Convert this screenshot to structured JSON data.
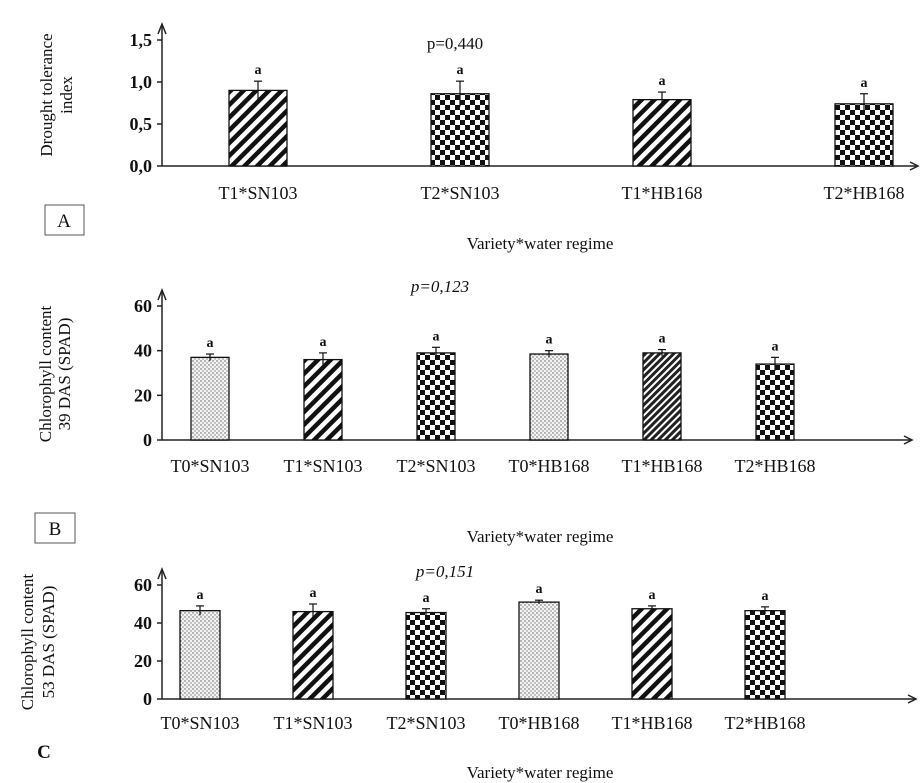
{
  "chart_data": [
    {
      "panel": "A",
      "type": "bar",
      "ylabel": [
        "Drought tolerance",
        "index"
      ],
      "xlabel": "Variety*water regime",
      "annotation": "p=0,440",
      "ylim": [
        0,
        1.5
      ],
      "yticks": [
        "0,0",
        "0,5",
        "1,0",
        "1,5"
      ],
      "categories": [
        "T1*SN103",
        "T2*SN103",
        "T1*HB168",
        "T2*HB168"
      ],
      "values": [
        0.9,
        0.86,
        0.79,
        0.74
      ],
      "errors": [
        0.11,
        0.15,
        0.09,
        0.12
      ],
      "patterns": [
        "diagonal",
        "checker",
        "diagonal",
        "checker"
      ],
      "letters": [
        "a",
        "a",
        "a",
        "a"
      ]
    },
    {
      "panel": "B",
      "type": "bar",
      "ylabel": [
        "Chlorophyll content",
        "39 DAS (SPAD)"
      ],
      "xlabel": "Variety*water regime",
      "annotation": "p=0,123",
      "ylim": [
        0,
        60
      ],
      "yticks": [
        "0",
        "20",
        "40",
        "60"
      ],
      "categories": [
        "T0*SN103",
        "T1*SN103",
        "T2*SN103",
        "T0*HB168",
        "T1*HB168",
        "T2*HB168"
      ],
      "values": [
        37,
        36,
        39,
        38.5,
        39,
        34
      ],
      "errors": [
        1.5,
        3,
        2.5,
        1.5,
        1.5,
        3
      ],
      "patterns": [
        "dots",
        "diagonal",
        "checker",
        "dots",
        "hatch",
        "checker"
      ],
      "letters": [
        "a",
        "a",
        "a",
        "a",
        "a",
        "a"
      ]
    },
    {
      "panel": "C",
      "type": "bar",
      "ylabel": [
        "Chlorophyll content",
        "53 DAS (SPAD)"
      ],
      "xlabel": "Variety*water regime",
      "annotation": "p=0,151",
      "ylim": [
        0,
        60
      ],
      "yticks": [
        "0",
        "20",
        "40",
        "60"
      ],
      "categories": [
        "T0*SN103",
        "T1*SN103",
        "T2*SN103",
        "T0*HB168",
        "T1*HB168",
        "T2*HB168"
      ],
      "values": [
        46.5,
        46,
        45.5,
        51,
        47.5,
        46.5
      ],
      "errors": [
        2.5,
        4,
        2,
        1,
        1.5,
        2
      ],
      "patterns": [
        "dots",
        "diagonal",
        "checker",
        "dots",
        "diagonal",
        "checker"
      ],
      "letters": [
        "a",
        "a",
        "a",
        "a",
        "a",
        "a"
      ]
    }
  ]
}
